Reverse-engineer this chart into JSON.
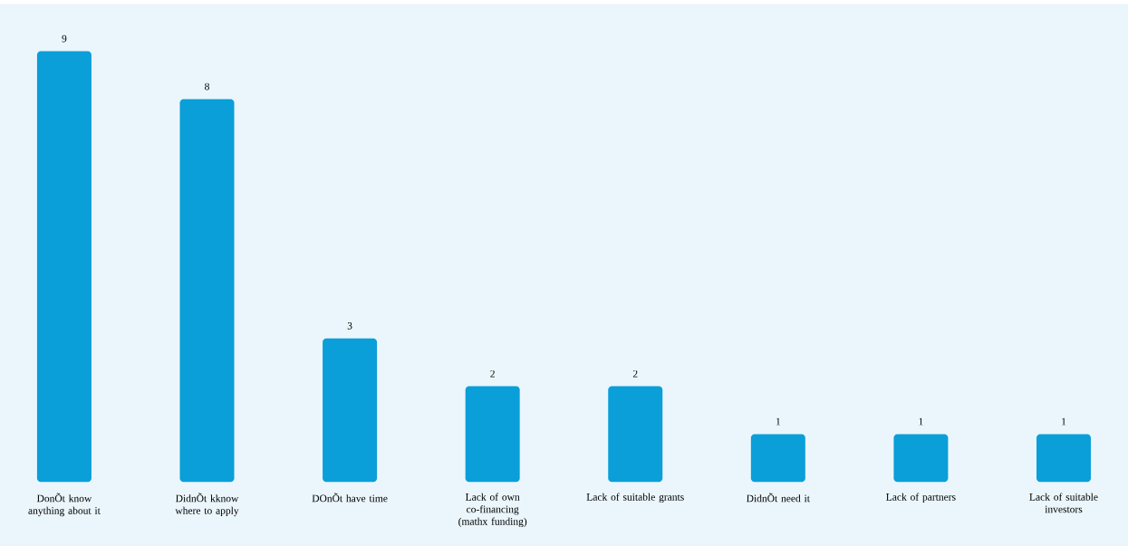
{
  "chart_data": {
    "type": "bar",
    "categories": [
      "DonÕt know anything about it",
      "DidnÕt kknow where to apply",
      "DOnÕt have time",
      "Lack of own co-financing (mathx funding)",
      "Lack of suitable grants",
      "DidnÕt need it",
      "Lack of partners",
      "Lack of suitable investors"
    ],
    "values": [
      9,
      8,
      3,
      2,
      2,
      1,
      1,
      1
    ],
    "color": "#0a9fd8",
    "data_labels": true
  }
}
